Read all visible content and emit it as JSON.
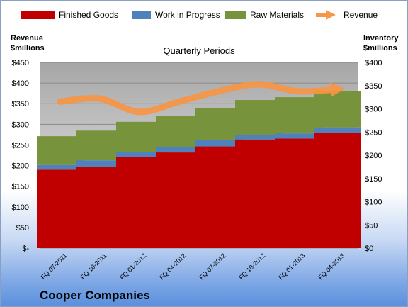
{
  "company": "Cooper Companies",
  "chart_data": {
    "type": "bar",
    "stacked": true,
    "title": "Quarterly Periods",
    "categories": [
      "FQ 07-2011",
      "FQ 10-2011",
      "FQ 01-2012",
      "FQ 04-2012",
      "FQ 07-2012",
      "FQ 10-2012",
      "FQ 01-2013",
      "FQ 04-2013"
    ],
    "left_axis": {
      "label_line1": "Revenue",
      "label_line2": "$millions",
      "min": 0,
      "max": 450,
      "step": 50,
      "ticks": [
        "$-",
        "$50",
        "$100",
        "$150",
        "$200",
        "$250",
        "$300",
        "$350",
        "$400",
        "$450"
      ]
    },
    "right_axis": {
      "label_line1": "Inventory",
      "label_line2": "$millions",
      "min": 0,
      "max": 400,
      "step": 50,
      "ticks": [
        "$0",
        "$50",
        "$100",
        "$150",
        "$200",
        "$250",
        "$300",
        "$350",
        "$400"
      ]
    },
    "series": [
      {
        "name": "Finished Goods",
        "axis": "right",
        "color": "#c00000",
        "values": [
          169,
          175,
          196,
          206,
          219,
          234,
          236,
          248
        ]
      },
      {
        "name": "Work in Progress",
        "axis": "right",
        "color": "#4f81bd",
        "values": [
          10,
          14,
          11,
          11,
          14,
          9,
          11,
          12
        ]
      },
      {
        "name": "Raw Materials",
        "axis": "right",
        "color": "#77933c",
        "values": [
          62,
          64,
          65,
          68,
          69,
          76,
          78,
          78
        ]
      },
      {
        "name": "Revenue",
        "axis": "left",
        "type": "line",
        "color": "#f79646",
        "values": [
          355,
          362,
          330,
          355,
          380,
          397,
          380,
          385
        ]
      }
    ],
    "grid": true,
    "legend": "top"
  }
}
